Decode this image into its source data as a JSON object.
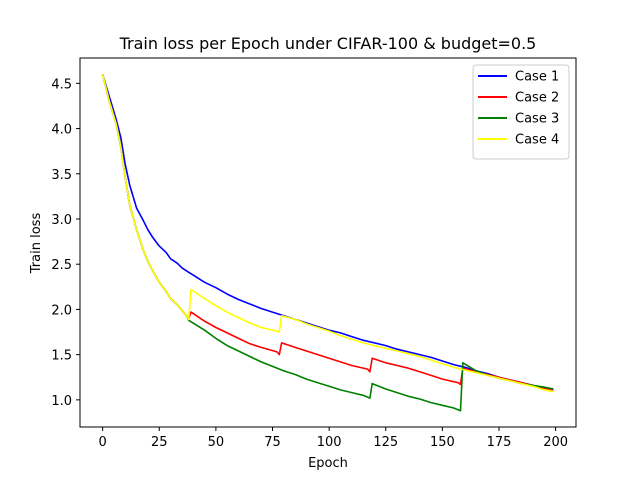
{
  "chart_data": {
    "type": "line",
    "title": "Train loss per Epoch under CIFAR-100 & budget=0.5",
    "xlabel": "Epoch",
    "ylabel": "Train loss",
    "xlim": [
      -10,
      209
    ],
    "ylim": [
      0.7,
      4.78
    ],
    "xticks": [
      0,
      25,
      50,
      75,
      100,
      125,
      150,
      175,
      200
    ],
    "yticks": [
      1.0,
      1.5,
      2.0,
      2.5,
      3.0,
      3.5,
      4.0,
      4.5
    ],
    "legend_position": "top-right",
    "grid": false,
    "series": [
      {
        "name": "Case 1",
        "color": "#0000ff",
        "x": [
          0,
          3,
          6,
          8,
          10,
          12,
          15,
          18,
          20,
          22,
          25,
          28,
          30,
          33,
          35,
          38,
          40,
          45,
          50,
          55,
          60,
          65,
          70,
          75,
          80,
          85,
          90,
          95,
          100,
          105,
          110,
          115,
          120,
          125,
          130,
          135,
          140,
          145,
          150,
          155,
          160,
          165,
          170,
          175,
          180,
          185,
          190,
          195,
          199
        ],
        "y": [
          4.6,
          4.35,
          4.1,
          3.9,
          3.6,
          3.37,
          3.12,
          2.98,
          2.88,
          2.8,
          2.7,
          2.63,
          2.56,
          2.51,
          2.46,
          2.41,
          2.38,
          2.3,
          2.24,
          2.17,
          2.11,
          2.06,
          2.01,
          1.97,
          1.93,
          1.89,
          1.85,
          1.81,
          1.77,
          1.74,
          1.7,
          1.66,
          1.63,
          1.6,
          1.56,
          1.53,
          1.5,
          1.47,
          1.43,
          1.39,
          1.36,
          1.32,
          1.29,
          1.25,
          1.22,
          1.19,
          1.16,
          1.13,
          1.12
        ]
      },
      {
        "name": "Case 2",
        "color": "#ff0000",
        "x": [
          0,
          3,
          6,
          8,
          10,
          12,
          15,
          18,
          20,
          22,
          25,
          28,
          30,
          33,
          35,
          37,
          38,
          39,
          45,
          50,
          55,
          60,
          65,
          70,
          77,
          78,
          79,
          85,
          90,
          95,
          100,
          105,
          110,
          117,
          118,
          119,
          125,
          130,
          135,
          140,
          145,
          150,
          157,
          158,
          159,
          165,
          170,
          175,
          180,
          185,
          190,
          195,
          199
        ],
        "y": [
          4.6,
          4.3,
          4.05,
          3.8,
          3.45,
          3.15,
          2.88,
          2.65,
          2.53,
          2.43,
          2.3,
          2.2,
          2.12,
          2.05,
          1.99,
          1.93,
          1.9,
          1.97,
          1.87,
          1.8,
          1.74,
          1.68,
          1.62,
          1.58,
          1.53,
          1.5,
          1.63,
          1.58,
          1.54,
          1.5,
          1.46,
          1.42,
          1.38,
          1.34,
          1.31,
          1.46,
          1.41,
          1.38,
          1.35,
          1.31,
          1.27,
          1.23,
          1.19,
          1.17,
          1.35,
          1.31,
          1.28,
          1.25,
          1.22,
          1.19,
          1.16,
          1.13,
          1.11
        ]
      },
      {
        "name": "Case 3",
        "color": "#008000",
        "x": [
          0,
          3,
          6,
          8,
          10,
          12,
          15,
          18,
          20,
          22,
          25,
          28,
          30,
          33,
          35,
          37,
          38,
          45,
          50,
          55,
          60,
          65,
          70,
          75,
          80,
          85,
          90,
          95,
          100,
          105,
          110,
          115,
          118,
          119,
          125,
          130,
          135,
          140,
          145,
          150,
          155,
          158,
          159,
          165,
          170,
          175,
          180,
          185,
          190,
          195,
          199
        ],
        "y": [
          4.6,
          4.3,
          4.05,
          3.8,
          3.45,
          3.15,
          2.88,
          2.65,
          2.53,
          2.43,
          2.3,
          2.2,
          2.12,
          2.05,
          1.99,
          1.93,
          1.88,
          1.77,
          1.68,
          1.6,
          1.54,
          1.48,
          1.42,
          1.37,
          1.32,
          1.28,
          1.23,
          1.19,
          1.15,
          1.11,
          1.08,
          1.05,
          1.02,
          1.18,
          1.12,
          1.08,
          1.04,
          1.01,
          0.97,
          0.94,
          0.91,
          0.88,
          1.41,
          1.32,
          1.27,
          1.24,
          1.21,
          1.18,
          1.16,
          1.14,
          1.12
        ]
      },
      {
        "name": "Case 4",
        "color": "#ffff00",
        "x": [
          0,
          3,
          6,
          8,
          10,
          12,
          15,
          18,
          20,
          22,
          25,
          28,
          30,
          33,
          35,
          37,
          38,
          39,
          45,
          50,
          55,
          60,
          65,
          70,
          77,
          78,
          79,
          85,
          90,
          95,
          100,
          105,
          110,
          115,
          120,
          125,
          130,
          135,
          140,
          145,
          150,
          155,
          160,
          165,
          170,
          175,
          180,
          185,
          190,
          195,
          199
        ],
        "y": [
          4.6,
          4.3,
          4.05,
          3.8,
          3.45,
          3.15,
          2.88,
          2.65,
          2.53,
          2.43,
          2.3,
          2.2,
          2.12,
          2.05,
          1.99,
          1.93,
          1.89,
          2.22,
          2.12,
          2.04,
          1.97,
          1.91,
          1.85,
          1.8,
          1.76,
          1.75,
          1.93,
          1.89,
          1.84,
          1.8,
          1.76,
          1.71,
          1.67,
          1.63,
          1.6,
          1.57,
          1.54,
          1.51,
          1.48,
          1.44,
          1.4,
          1.36,
          1.33,
          1.3,
          1.27,
          1.24,
          1.21,
          1.18,
          1.15,
          1.11,
          1.09
        ]
      }
    ]
  }
}
